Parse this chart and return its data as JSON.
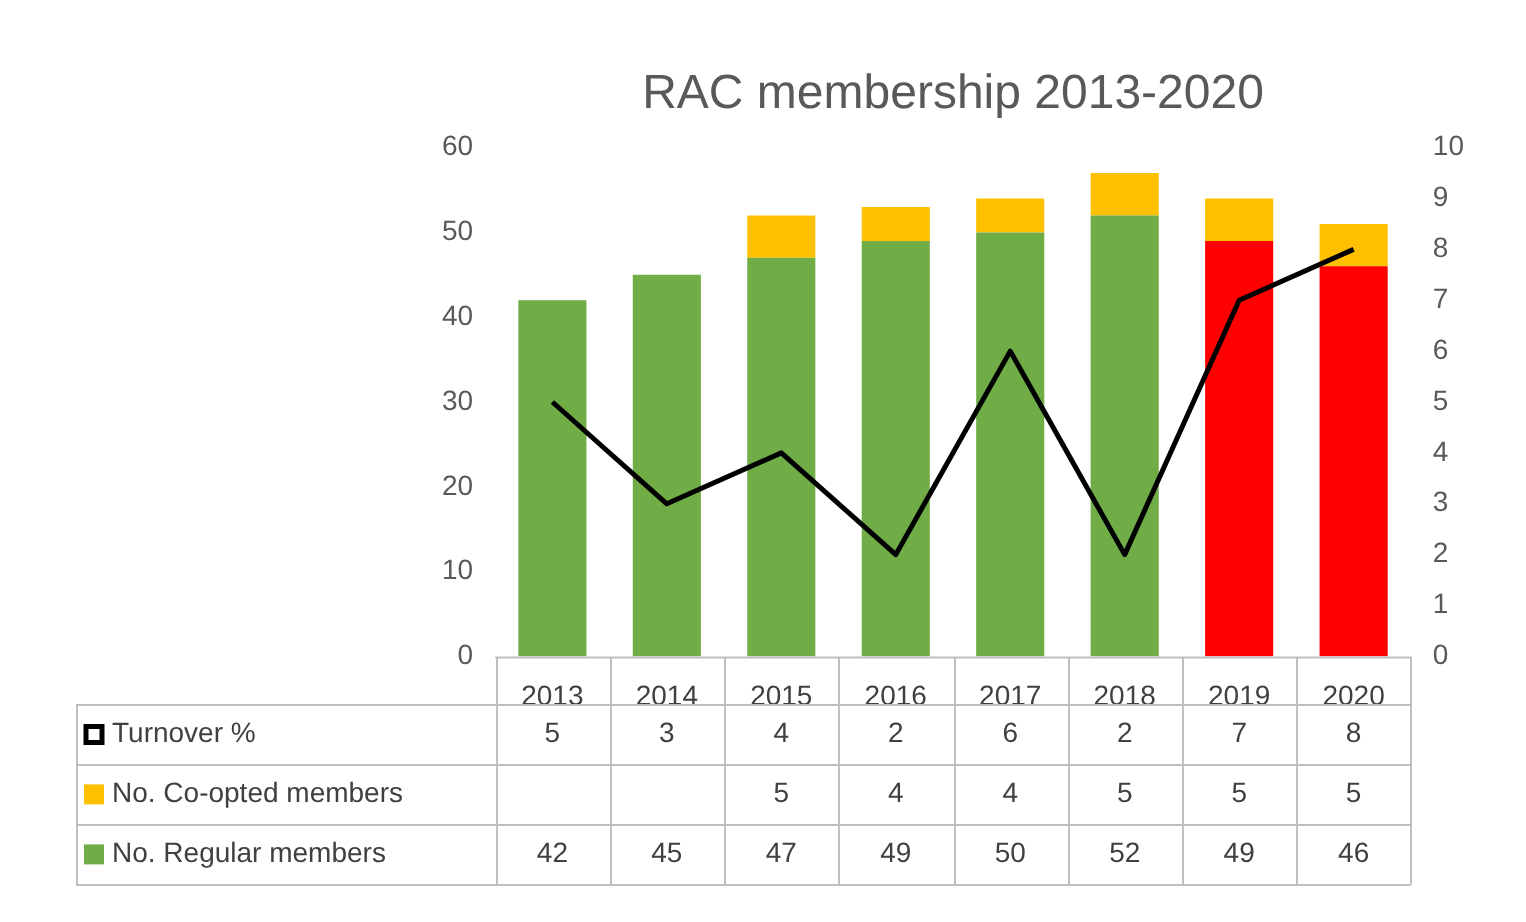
{
  "chart_data": {
    "type": "bar",
    "title": "RAC membership 2013-2020",
    "categories": [
      "2013",
      "2014",
      "2015",
      "2016",
      "2017",
      "2018",
      "2019",
      "2020"
    ],
    "stacked": true,
    "series": [
      {
        "name": "No. Regular members",
        "color": "#70ad47",
        "colors": [
          "#70ad47",
          "#70ad47",
          "#70ad47",
          "#70ad47",
          "#70ad47",
          "#70ad47",
          "#ff0000",
          "#ff0000"
        ],
        "values": [
          42,
          45,
          47,
          49,
          50,
          52,
          49,
          46
        ]
      },
      {
        "name": "No. Co-opted members",
        "color": "#ffc000",
        "values": [
          null,
          null,
          5,
          4,
          4,
          5,
          5,
          5
        ]
      },
      {
        "name": "Turnover %",
        "type": "line",
        "axis": "y2",
        "color": "#000000",
        "values": [
          5,
          3,
          4,
          2,
          6,
          2,
          7,
          8
        ]
      }
    ],
    "ylim": [
      0,
      60
    ],
    "yticks": [
      0,
      10,
      20,
      30,
      40,
      50,
      60
    ],
    "y2lim": [
      0,
      10
    ],
    "y2ticks": [
      0,
      1,
      2,
      3,
      4,
      5,
      6,
      7,
      8,
      9,
      10
    ],
    "grid": false,
    "legend": "bottom",
    "marker": "none",
    "line_style": "solid",
    "data_labels": true
  }
}
